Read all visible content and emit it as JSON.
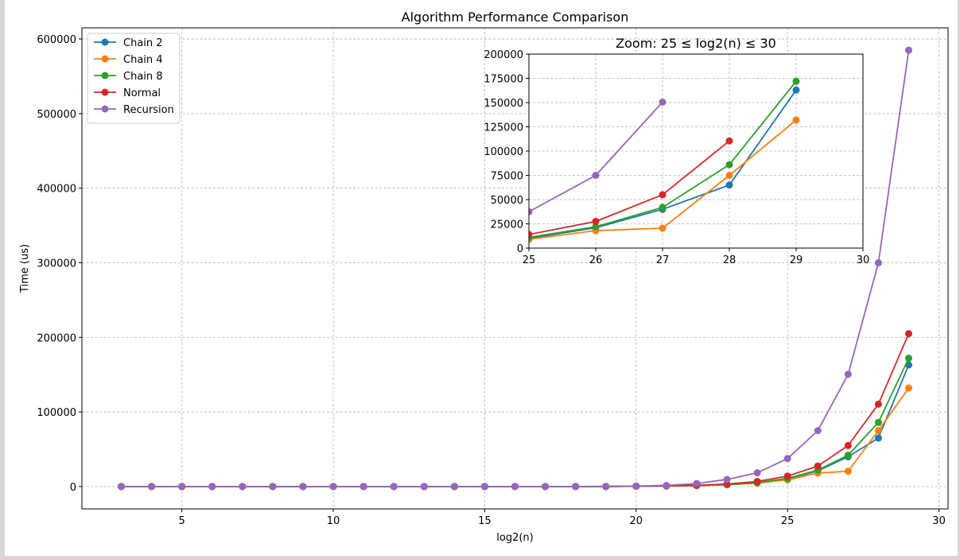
{
  "window": {
    "background": "#d6d6d6"
  },
  "chart_data": [
    {
      "type": "line",
      "title": "Algorithm Performance Comparison",
      "xlabel": "log2(n)",
      "ylabel": "Time (us)",
      "xlim": [
        1.7,
        30.3
      ],
      "ylim": [
        -30000,
        615000
      ],
      "xticks": [
        5,
        10,
        15,
        20,
        25,
        30
      ],
      "yticks": [
        0,
        100000,
        200000,
        300000,
        400000,
        500000,
        600000
      ],
      "grid": true,
      "legend": "top-left",
      "x": [
        3,
        4,
        5,
        6,
        7,
        8,
        9,
        10,
        11,
        12,
        13,
        14,
        15,
        16,
        17,
        18,
        19,
        20,
        21,
        22,
        23,
        24,
        25,
        26,
        27,
        28,
        29
      ],
      "series": [
        {
          "name": "Chain 2",
          "color": "#1f77b4",
          "values": [
            0,
            0,
            0,
            0,
            0,
            0,
            0,
            0,
            0,
            0,
            0,
            0,
            0,
            0,
            0,
            0,
            0,
            400,
            800,
            1300,
            2500,
            5000,
            10000,
            21000,
            40000,
            65000,
            163000
          ]
        },
        {
          "name": "Chain 4",
          "color": "#ff7f0e",
          "values": [
            0,
            0,
            0,
            0,
            0,
            0,
            0,
            0,
            0,
            0,
            0,
            0,
            0,
            0,
            0,
            0,
            0,
            300,
            700,
            1200,
            2300,
            4500,
            9000,
            18000,
            20500,
            75000,
            132000
          ]
        },
        {
          "name": "Chain 8",
          "color": "#2ca02c",
          "values": [
            0,
            0,
            0,
            0,
            0,
            0,
            0,
            0,
            0,
            0,
            0,
            0,
            0,
            0,
            0,
            0,
            0,
            400,
            800,
            1400,
            2600,
            5200,
            11000,
            22000,
            42000,
            86000,
            172000
          ]
        },
        {
          "name": "Normal",
          "color": "#d62728",
          "values": [
            0,
            0,
            0,
            0,
            0,
            0,
            0,
            0,
            0,
            0,
            0,
            0,
            0,
            0,
            0,
            0,
            0,
            400,
            900,
            1600,
            3300,
            6800,
            14000,
            27500,
            55000,
            110500,
            205000
          ]
        },
        {
          "name": "Recursion",
          "color": "#9467bd",
          "values": [
            0,
            0,
            0,
            0,
            0,
            0,
            0,
            0,
            0,
            0,
            0,
            0,
            0,
            0,
            0,
            0,
            200,
            600,
            1500,
            4000,
            9500,
            18500,
            37500,
            75000,
            150500,
            300000,
            585000
          ]
        }
      ]
    },
    {
      "type": "line",
      "title": "Zoom: 25 ≤ log2(n) ≤ 30",
      "xlabel": "",
      "ylabel": "",
      "xlim": [
        25,
        30
      ],
      "ylim": [
        0,
        200000
      ],
      "xticks": [
        25,
        26,
        27,
        28,
        29,
        30
      ],
      "yticks": [
        0,
        25000,
        50000,
        75000,
        100000,
        125000,
        150000,
        175000,
        200000
      ],
      "grid": true,
      "x": [
        25,
        26,
        27,
        28,
        29
      ],
      "series": [
        {
          "name": "Chain 2",
          "color": "#1f77b4",
          "values": [
            10000,
            21000,
            40000,
            65000,
            163000
          ]
        },
        {
          "name": "Chain 4",
          "color": "#ff7f0e",
          "values": [
            9000,
            18000,
            20500,
            75000,
            132000
          ]
        },
        {
          "name": "Chain 8",
          "color": "#2ca02c",
          "values": [
            11000,
            22000,
            42000,
            86000,
            172000
          ]
        },
        {
          "name": "Normal",
          "color": "#d62728",
          "values": [
            14000,
            27500,
            55000,
            110500,
            null
          ]
        },
        {
          "name": "Recursion",
          "color": "#9467bd",
          "values": [
            37500,
            75000,
            150500,
            null,
            null
          ]
        }
      ]
    }
  ]
}
